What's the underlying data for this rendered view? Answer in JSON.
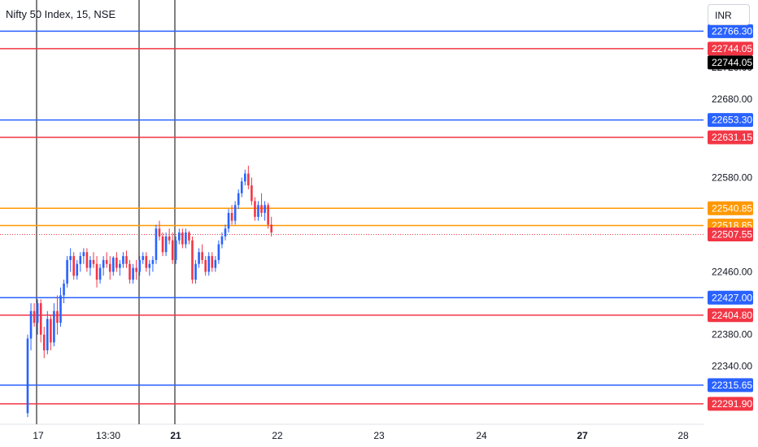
{
  "header": {
    "symbol_title": "Nifty 50 Index, 15, NSE",
    "currency": "INR"
  },
  "chart_data": {
    "type": "candlestick",
    "price_axis": {
      "ylim": [
        22275,
        22775
      ],
      "tick_labels": [
        "22720.00",
        "22680.00",
        "22580.00",
        "22460.00",
        "22380.00",
        "22340.00"
      ]
    },
    "time_axis": {
      "tick_labels": [
        {
          "label": "17",
          "bold": false
        },
        {
          "label": "13:30",
          "bold": false
        },
        {
          "label": "21",
          "bold": true
        },
        {
          "label": "22",
          "bold": false
        },
        {
          "label": "23",
          "bold": false
        },
        {
          "label": "24",
          "bold": false
        },
        {
          "label": "27",
          "bold": true
        },
        {
          "label": "28",
          "bold": false
        }
      ]
    },
    "horizontal_levels": [
      {
        "label": "22766.30",
        "price": 22766.3,
        "color": "#2962ff",
        "tag_text_color": "#ffffff"
      },
      {
        "label": "22744.05",
        "price": 22744.05,
        "color": "#f23645",
        "tag_text_color": "#ffffff"
      },
      {
        "label": "22653.30",
        "price": 22653.3,
        "color": "#2962ff",
        "tag_text_color": "#ffffff"
      },
      {
        "label": "22631.15",
        "price": 22631.15,
        "color": "#f23645",
        "tag_text_color": "#ffffff"
      },
      {
        "label": "22540.85",
        "price": 22540.85,
        "color": "#ff9800",
        "tag_text_color": "#131722"
      },
      {
        "label": "22518.85",
        "price": 22518.85,
        "color": "#ff9800",
        "tag_text_color": "#131722"
      },
      {
        "label": "22427.00",
        "price": 22427.0,
        "color": "#2962ff",
        "tag_text_color": "#ffffff"
      },
      {
        "label": "22404.80",
        "price": 22404.8,
        "color": "#f23645",
        "tag_text_color": "#ffffff"
      },
      {
        "label": "22315.65",
        "price": 22315.65,
        "color": "#2962ff",
        "tag_text_color": "#ffffff"
      },
      {
        "label": "22291.90",
        "price": 22291.9,
        "color": "#f23645",
        "tag_text_color": "#ffffff"
      }
    ],
    "extra_price_tags": [
      {
        "label": "22744.05",
        "price": 22744.05,
        "bg": "#000000",
        "fg": "#ffffff"
      }
    ],
    "last_price": {
      "label": "22507.55",
      "price": 22507.55,
      "color": "#f23645"
    },
    "vertical_markers": 3,
    "colors": {
      "up": "#2962ff",
      "down": "#f23645",
      "marker_line": "#000000"
    },
    "candles": [
      [
        22280,
        22380,
        22275,
        22375
      ],
      [
        22375,
        22420,
        22360,
        22410
      ],
      [
        22410,
        22420,
        22390,
        22395
      ],
      [
        22395,
        22425,
        22380,
        22420
      ],
      [
        22420,
        22425,
        22370,
        22380
      ],
      [
        22380,
        22390,
        22350,
        22360
      ],
      [
        22360,
        22410,
        22355,
        22400
      ],
      [
        22400,
        22405,
        22360,
        22370
      ],
      [
        22370,
        22420,
        22365,
        22410
      ],
      [
        22410,
        22430,
        22380,
        22395
      ],
      [
        22395,
        22440,
        22390,
        22430
      ],
      [
        22430,
        22450,
        22420,
        22445
      ],
      [
        22445,
        22480,
        22440,
        22475
      ],
      [
        22475,
        22490,
        22460,
        22480
      ],
      [
        22480,
        22485,
        22450,
        22455
      ],
      [
        22455,
        22475,
        22450,
        22470
      ],
      [
        22470,
        22485,
        22460,
        22480
      ],
      [
        22480,
        22490,
        22470,
        22485
      ],
      [
        22485,
        22490,
        22460,
        22465
      ],
      [
        22465,
        22480,
        22455,
        22475
      ],
      [
        22475,
        22485,
        22465,
        22470
      ],
      [
        22470,
        22480,
        22440,
        22450
      ],
      [
        22450,
        22470,
        22445,
        22465
      ],
      [
        22465,
        22480,
        22455,
        22475
      ],
      [
        22475,
        22485,
        22465,
        22470
      ],
      [
        22470,
        22480,
        22450,
        22460
      ],
      [
        22460,
        22480,
        22455,
        22478
      ],
      [
        22478,
        22485,
        22460,
        22465
      ],
      [
        22465,
        22475,
        22455,
        22470
      ],
      [
        22470,
        22485,
        22465,
        22480
      ],
      [
        22480,
        22487,
        22465,
        22470
      ],
      [
        22470,
        22475,
        22445,
        22450
      ],
      [
        22450,
        22470,
        22445,
        22465
      ],
      [
        22465,
        22475,
        22450,
        22460
      ],
      [
        22460,
        22480,
        22455,
        22475
      ],
      [
        22475,
        22485,
        22470,
        22480
      ],
      [
        22480,
        22485,
        22460,
        22465
      ],
      [
        22465,
        22475,
        22455,
        22470
      ],
      [
        22470,
        22480,
        22460,
        22475
      ],
      [
        22475,
        22520,
        22470,
        22515
      ],
      [
        22515,
        22525,
        22500,
        22505
      ],
      [
        22505,
        22510,
        22480,
        22485
      ],
      [
        22485,
        22510,
        22480,
        22505
      ],
      [
        22505,
        22515,
        22495,
        22500
      ],
      [
        22500,
        22510,
        22470,
        22475
      ],
      [
        22475,
        22505,
        22470,
        22500
      ],
      [
        22500,
        22515,
        22495,
        22510
      ],
      [
        22510,
        22515,
        22490,
        22495
      ],
      [
        22495,
        22515,
        22490,
        22510
      ],
      [
        22510,
        22512,
        22495,
        22500
      ],
      [
        22500,
        22505,
        22445,
        22450
      ],
      [
        22450,
        22475,
        22445,
        22470
      ],
      [
        22470,
        22490,
        22465,
        22485
      ],
      [
        22485,
        22495,
        22470,
        22475
      ],
      [
        22475,
        22480,
        22455,
        22460
      ],
      [
        22460,
        22485,
        22455,
        22480
      ],
      [
        22480,
        22485,
        22460,
        22465
      ],
      [
        22465,
        22480,
        22460,
        22475
      ],
      [
        22475,
        22500,
        22470,
        22495
      ],
      [
        22495,
        22510,
        22490,
        22505
      ],
      [
        22505,
        22520,
        22500,
        22515
      ],
      [
        22515,
        22540,
        22510,
        22535
      ],
      [
        22535,
        22545,
        22520,
        22525
      ],
      [
        22525,
        22550,
        22520,
        22545
      ],
      [
        22545,
        22565,
        22540,
        22560
      ],
      [
        22560,
        22580,
        22555,
        22575
      ],
      [
        22575,
        22590,
        22570,
        22585
      ],
      [
        22585,
        22595,
        22565,
        22570
      ],
      [
        22570,
        22580,
        22545,
        22550
      ],
      [
        22550,
        22555,
        22525,
        22530
      ],
      [
        22530,
        22550,
        22525,
        22545
      ],
      [
        22545,
        22560,
        22530,
        22535
      ],
      [
        22535,
        22550,
        22525,
        22545
      ],
      [
        22545,
        22548,
        22515,
        22520
      ],
      [
        22520,
        22530,
        22505,
        22510
      ]
    ]
  }
}
